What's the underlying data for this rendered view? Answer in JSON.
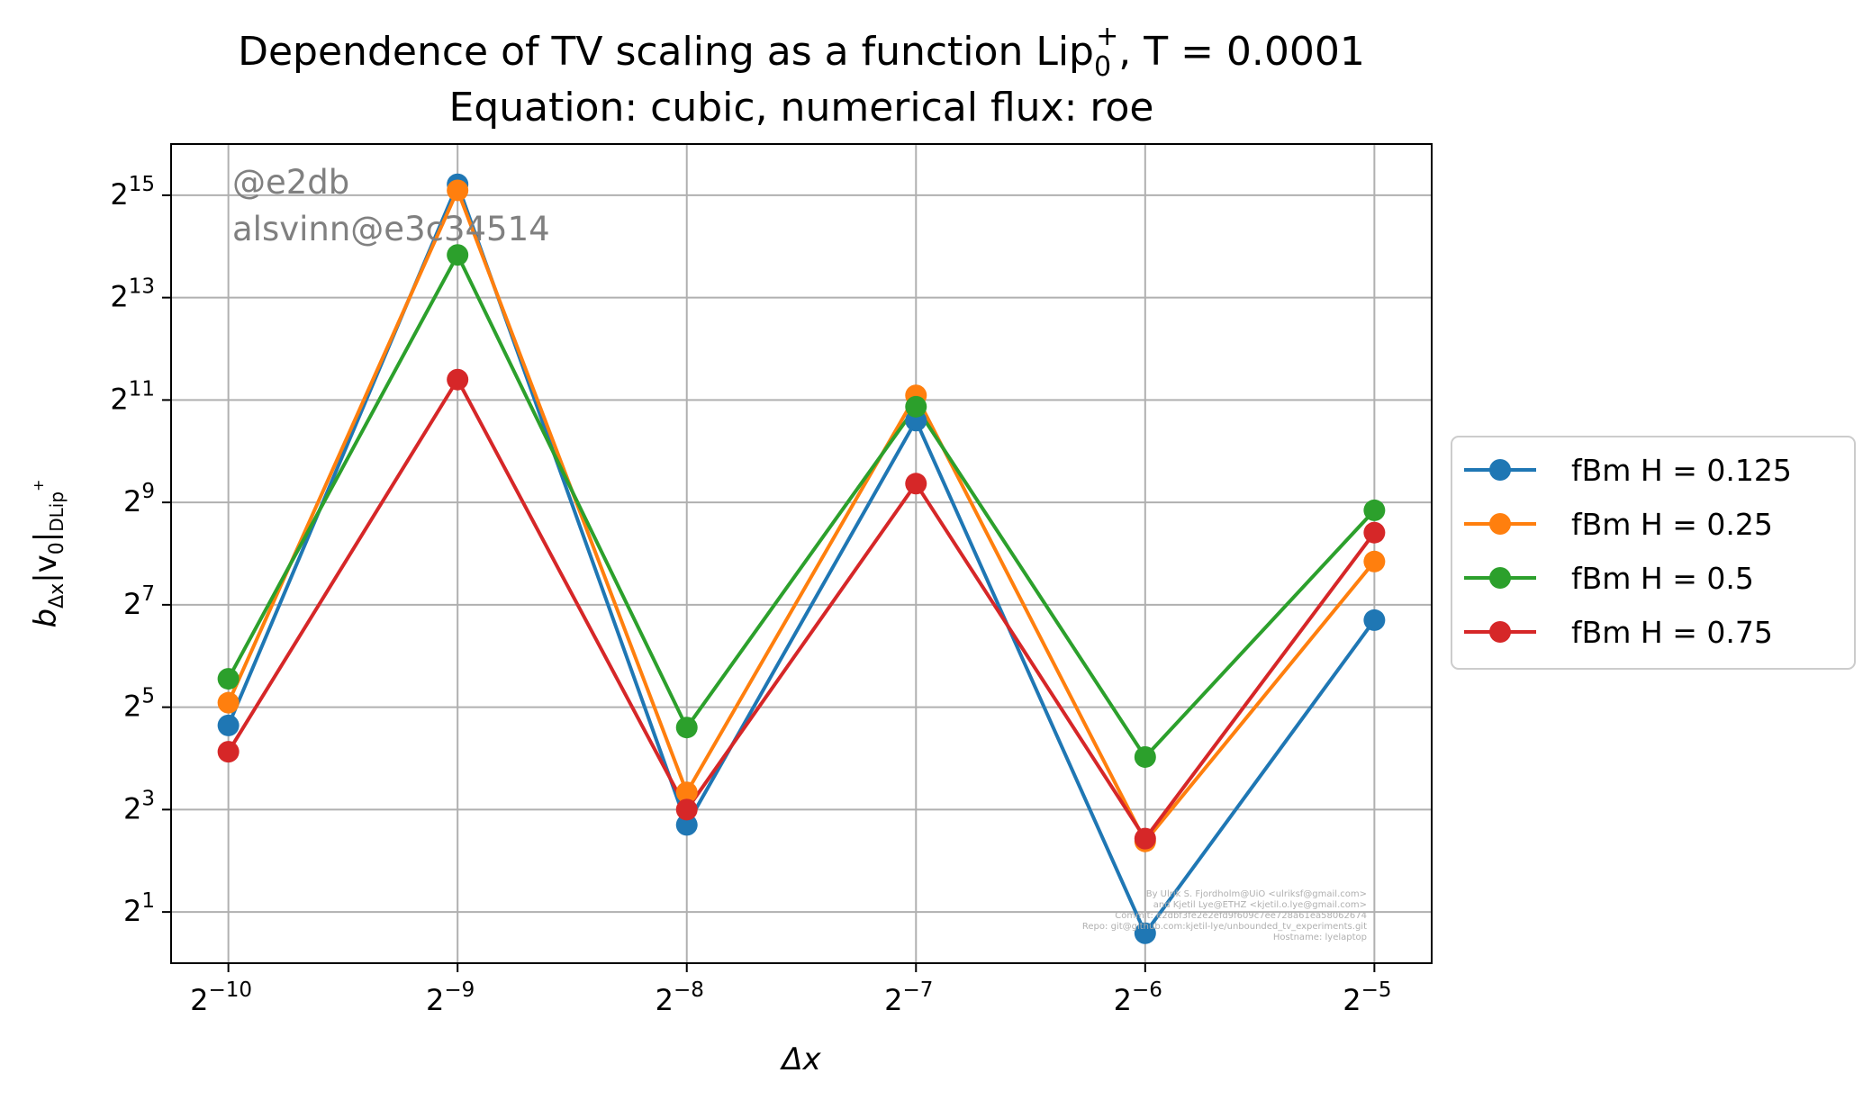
{
  "chart_data": {
    "type": "line",
    "title_line1": "Dependence of TV scaling as a function Lip",
    "title_lip_sub": "0",
    "title_lip_sup": "+",
    "title_T": ", T = 0.0001",
    "title_line2": "Equation: cubic, numerical flux: roe",
    "xlabel": "Δx",
    "ylabel": "b",
    "ylabel_sub1": "Δx",
    "ylabel_main": "|v",
    "ylabel_sub2": "0",
    "ylabel_bar": "|",
    "ylabel_sub3": "DLip",
    "ylabel_sup3": "+",
    "x_scale": "log2",
    "y_scale": "log2",
    "x": [
      0.0009765625,
      0.001953125,
      0.00390625,
      0.0078125,
      0.015625,
      0.03125
    ],
    "x_tick_labels": [
      {
        "base": "2",
        "exp": "−10"
      },
      {
        "base": "2",
        "exp": "−9"
      },
      {
        "base": "2",
        "exp": "−8"
      },
      {
        "base": "2",
        "exp": "−7"
      },
      {
        "base": "2",
        "exp": "−6"
      },
      {
        "base": "2",
        "exp": "−5"
      }
    ],
    "y_tick_labels": [
      {
        "base": "2",
        "exp": "1",
        "log2": 1
      },
      {
        "base": "2",
        "exp": "3",
        "log2": 3
      },
      {
        "base": "2",
        "exp": "5",
        "log2": 5
      },
      {
        "base": "2",
        "exp": "7",
        "log2": 7
      },
      {
        "base": "2",
        "exp": "9",
        "log2": 9
      },
      {
        "base": "2",
        "exp": "11",
        "log2": 11
      },
      {
        "base": "2",
        "exp": "13",
        "log2": 13
      },
      {
        "base": "2",
        "exp": "15",
        "log2": 15
      }
    ],
    "xlim_log2": [
      -10.25,
      -4.75
    ],
    "ylim_log2": [
      0.0,
      16.0
    ],
    "grid": true,
    "legend_position": "outside-right",
    "series": [
      {
        "name": "fBm H = 0.125",
        "color": "#1f77b4",
        "values": [
          25,
          38000,
          6.5,
          1550,
          1.5,
          104
        ]
      },
      {
        "name": "fBm H = 0.25",
        "color": "#ff7f0e",
        "values": [
          34,
          35000,
          10.1,
          2180,
          5.2,
          230
        ]
      },
      {
        "name": "fBm H = 0.5",
        "color": "#2ca02c",
        "values": [
          47,
          14600,
          24.3,
          1870,
          16.3,
          460
        ]
      },
      {
        "name": "fBm H = 0.75",
        "color": "#d62728",
        "values": [
          17.5,
          2700,
          8.0,
          660,
          5.4,
          340
        ]
      }
    ]
  },
  "watermark": {
    "line1": "@e2db",
    "line2": "alsvinn@e3c34514"
  },
  "footnote": [
    "By Ulrik S. Fjordholm@UiO <ulriksf@gmail.com>",
    "and Kjetil Lye@ETHZ <kjetil.o.lye@gmail.com>",
    "Commit: e2dbf3fe2e2efd9f609c7ee728a61ea58062674",
    "Repo: git@github.com:kjetil-lye/unbounded_tv_experiments.git",
    "Hostname: lyelaptop"
  ]
}
